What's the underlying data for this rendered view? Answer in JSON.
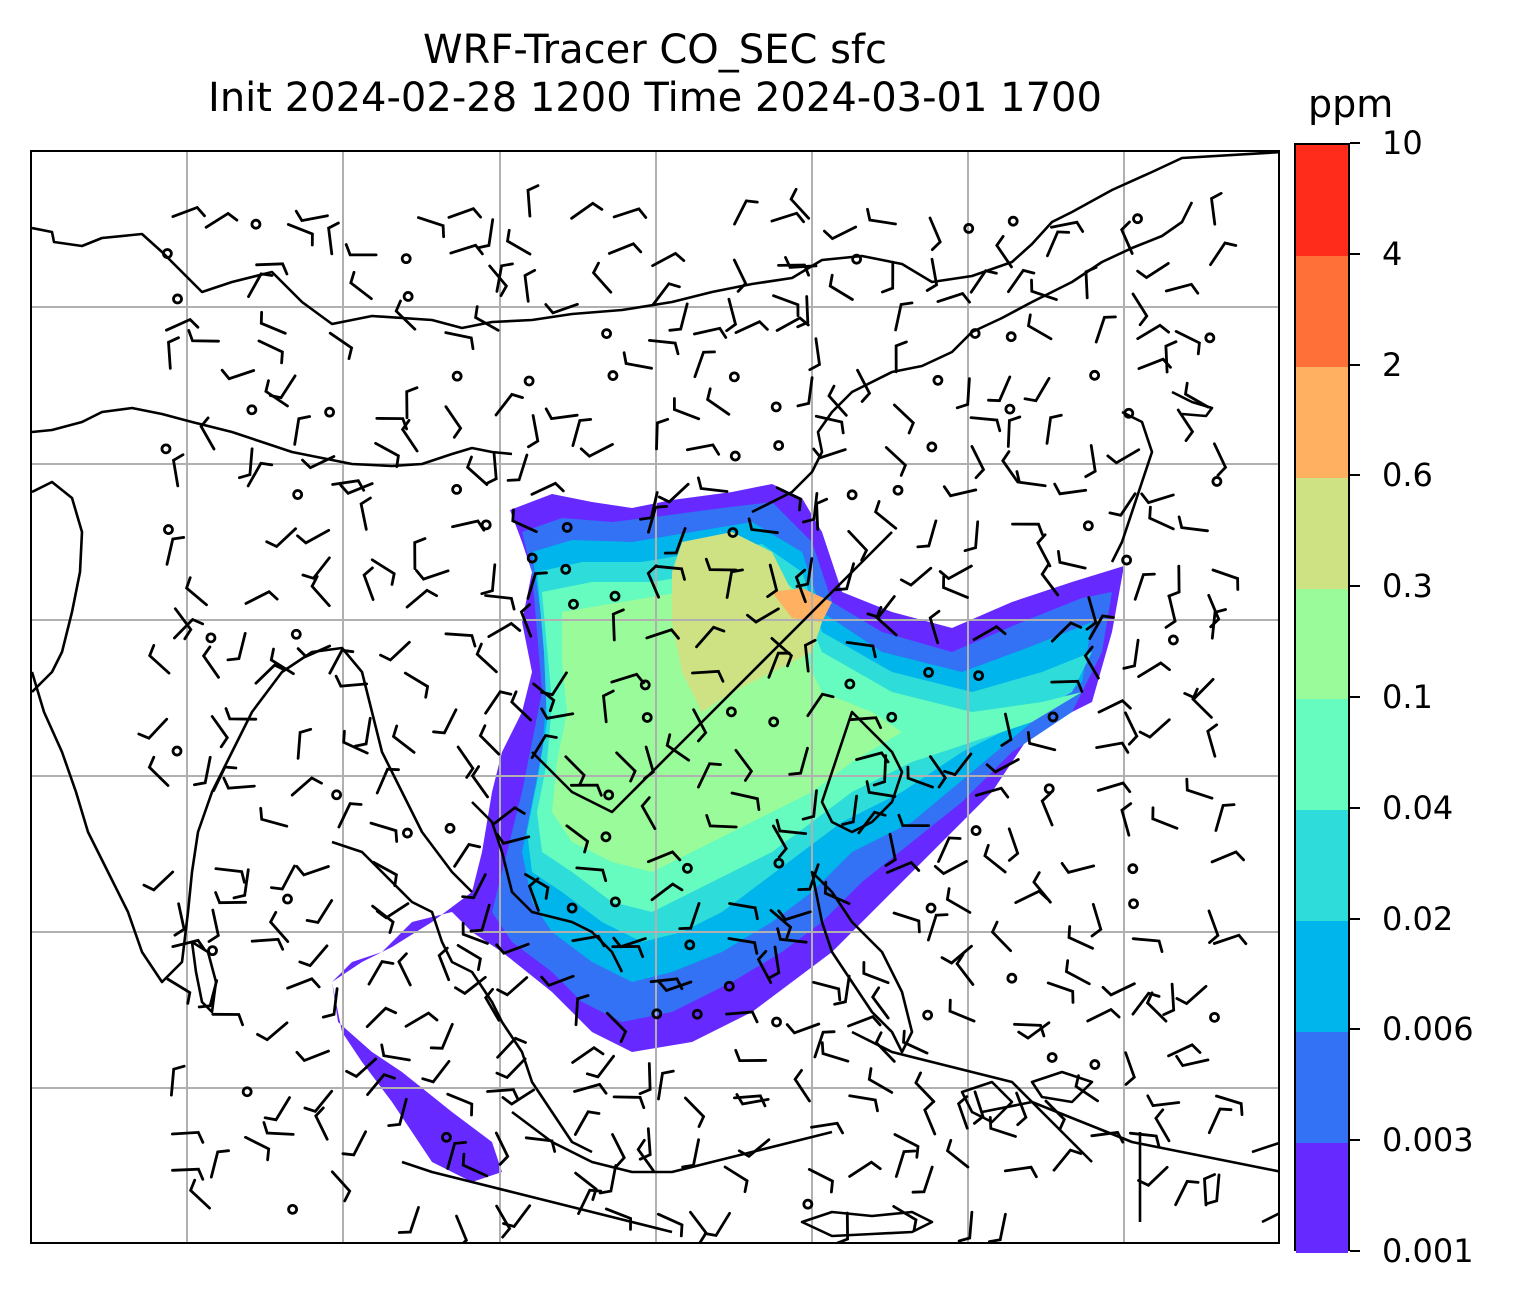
{
  "title_line1": "WRF-Tracer CO_SEC sfc",
  "title_line2": "Init 2024-02-28 1200 Time 2024-03-01 1700",
  "colorbar": {
    "unit": "ppm",
    "levels": [
      "0.001",
      "0.003",
      "0.006",
      "0.02",
      "0.04",
      "0.1",
      "0.3",
      "0.6",
      "2",
      "4",
      "10"
    ],
    "colors": [
      "#6629FF",
      "#3371F5",
      "#00B5EB",
      "#2EDDD9",
      "#66FBBF",
      "#9AFB9A",
      "#CEE183",
      "#FFB061",
      "#FF7039",
      "#FF2C1C"
    ]
  },
  "map": {
    "field": "CO_SEC surface tracer concentration",
    "overlays": [
      "coastlines",
      "country-borders",
      "lat-lon-gridlines",
      "wind-barbs"
    ]
  }
}
